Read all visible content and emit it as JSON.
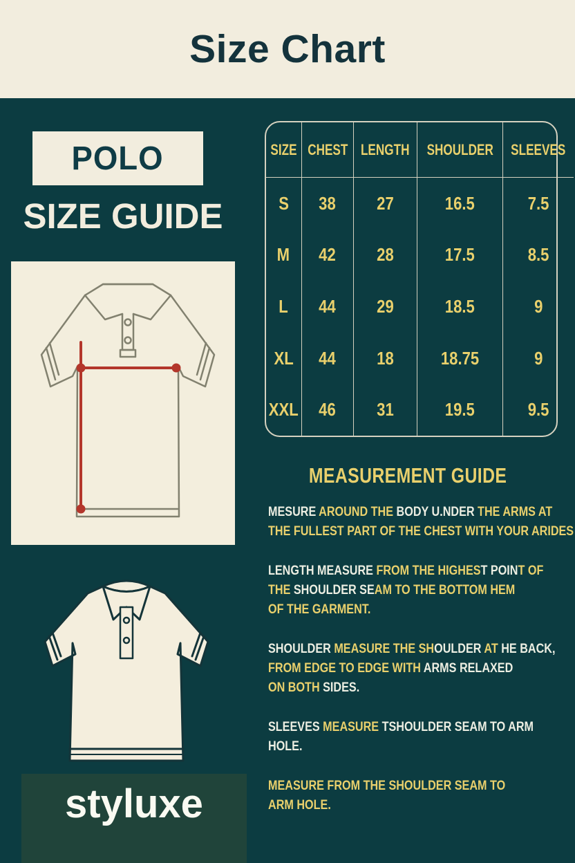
{
  "header": {
    "title": "Size Chart"
  },
  "left": {
    "product": "POLO",
    "subtitle": "SIZE GUIDE",
    "brand": "styluxe"
  },
  "table": {
    "columns": [
      "SIZE",
      "CHEST",
      "LENGTH",
      "SHOULDER",
      "SLEEVES"
    ],
    "rows": [
      [
        "S",
        "38",
        "27",
        "16.5",
        "7.5"
      ],
      [
        "M",
        "42",
        "28",
        "17.5",
        "8.5"
      ],
      [
        "L",
        "44",
        "29",
        "18.5",
        "9"
      ],
      [
        "XL",
        "44",
        "18",
        "18.75",
        "9"
      ],
      [
        "XXL",
        "46",
        "31",
        "19.5",
        "9.5"
      ]
    ]
  },
  "guide": {
    "heading": "MEASUREMENT GUIDE",
    "paragraphs": [
      {
        "lines": [
          [
            {
              "t": "MESURE ",
              "c": "w"
            },
            {
              "t": "AROUND THE ",
              "c": "y"
            },
            {
              "t": "BODY U.NDER ",
              "c": "w"
            },
            {
              "t": "THE ARMS AT",
              "c": "y"
            }
          ],
          [
            {
              "t": "THE FULLEST PART OF THE CHEST WITH YOUR ARIDES",
              "c": "y"
            }
          ]
        ]
      },
      {
        "lines": [
          [
            {
              "t": "LENGTH MEASURE ",
              "c": "w"
            },
            {
              "t": "FROM THE HIGHES",
              "c": "y"
            },
            {
              "t": "T POIN",
              "c": "w"
            },
            {
              "t": "T OF",
              "c": "y"
            }
          ],
          [
            {
              "t": "THE ",
              "c": "y"
            },
            {
              "t": "SHOULDER SE",
              "c": "w"
            },
            {
              "t": "AM TO THE BOTTOM HEM",
              "c": "y"
            }
          ],
          [
            {
              "t": "OF THE GARMENT.",
              "c": "y"
            }
          ]
        ]
      },
      {
        "lines": [
          [
            {
              "t": "SHOULDER ",
              "c": "w"
            },
            {
              "t": "MEASURE THE SH",
              "c": "y"
            },
            {
              "t": "OULDER ",
              "c": "w"
            },
            {
              "t": "AT ",
              "c": "y"
            },
            {
              "t": "HE BACK,",
              "c": "w"
            }
          ],
          [
            {
              "t": "FROM EDGE TO EDGE WITH ",
              "c": "y"
            },
            {
              "t": "ARMS RELAXED",
              "c": "w"
            }
          ],
          [
            {
              "t": "ON BOTH ",
              "c": "y"
            },
            {
              "t": "SIDES.",
              "c": "w"
            }
          ]
        ]
      },
      {
        "lines": [
          [
            {
              "t": "SLEEVES ",
              "c": "w"
            },
            {
              "t": "MEASURE ",
              "c": "y"
            },
            {
              "t": "TSHOULDER SEAM TO ARM",
              "c": "w"
            }
          ],
          [
            {
              "t": "HOLE.",
              "c": "w"
            }
          ]
        ]
      },
      {
        "lines": [
          [
            {
              "t": "MEASURE FROM THE SHOULDER SEAM TO",
              "c": "y"
            }
          ],
          [
            {
              "t": "ARM HOLE.",
              "c": "y"
            }
          ]
        ]
      }
    ]
  },
  "colors": {
    "teal": "#0c3c41",
    "cream": "#f2edde",
    "gold": "#e9d06c",
    "ink": "#14333c",
    "red": "#b3362b",
    "line": "#d6d2c0",
    "brandbox": "#20443a",
    "wtext": "#eceee2"
  }
}
